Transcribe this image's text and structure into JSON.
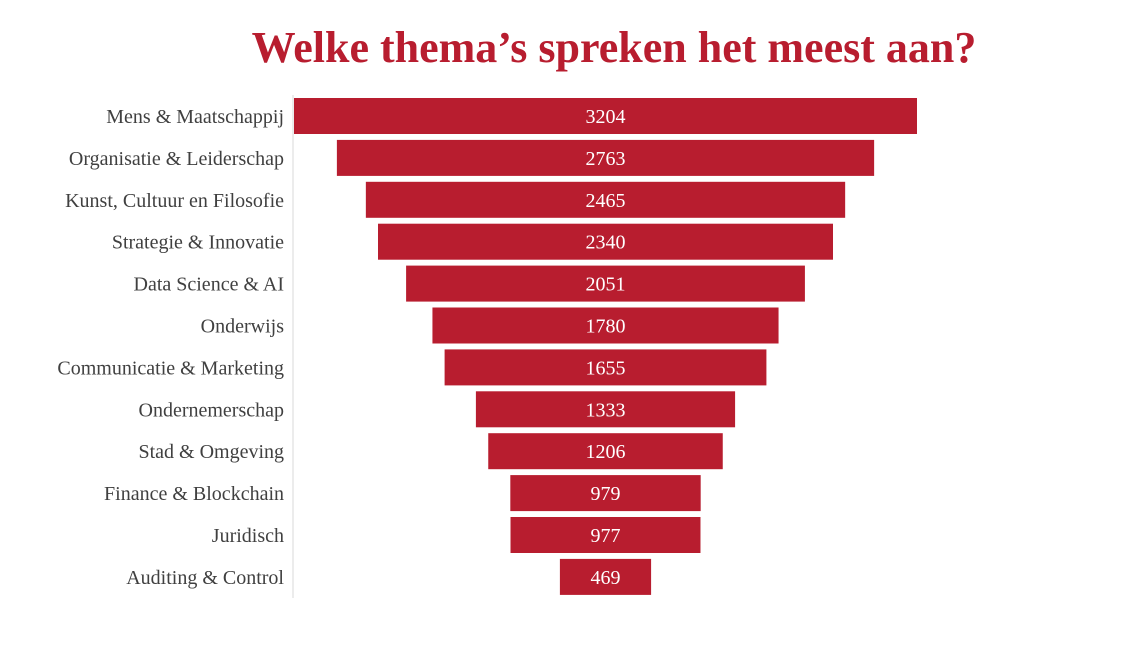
{
  "chart_data": {
    "type": "bar",
    "title": "Welke thema’s spreken het meest aan?",
    "categories": [
      "Mens & Maatschappij",
      "Organisatie & Leiderschap",
      "Kunst, Cultuur en Filosofie",
      "Strategie & Innovatie",
      "Data Science & AI",
      "Onderwijs",
      "Communicatie & Marketing",
      "Ondernemerschap",
      "Stad & Omgeving",
      "Finance & Blockchain",
      "Juridisch",
      "Auditing & Control"
    ],
    "values": [
      3204,
      2763,
      2465,
      2340,
      2051,
      1780,
      1655,
      1333,
      1206,
      979,
      977,
      469
    ],
    "bar_color": "#B81D2F",
    "title_color": "#B81D2F",
    "label_color": "#404040",
    "value_label_color": "#ffffff",
    "alignment": "centered",
    "data_labels": true,
    "grid": false,
    "legend": "none"
  }
}
